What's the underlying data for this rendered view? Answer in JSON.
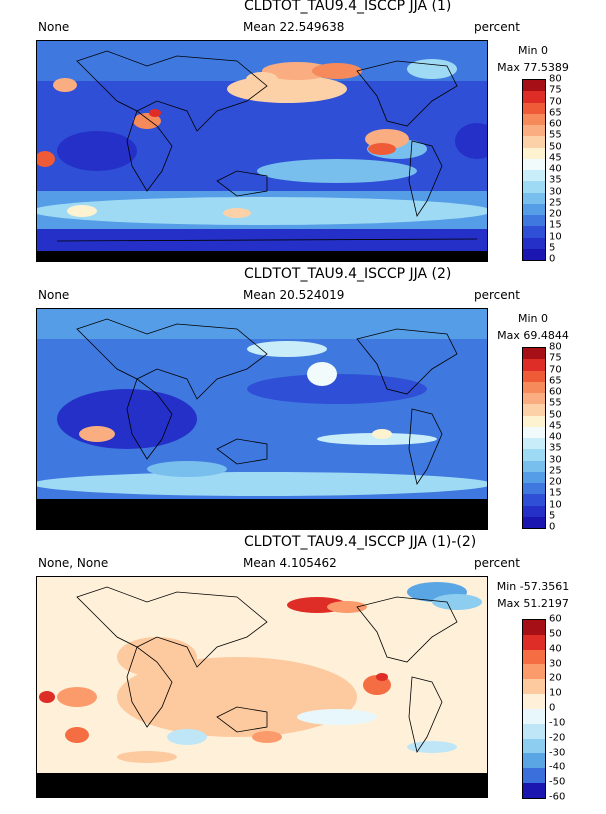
{
  "units": "percent",
  "chart_data": [
    {
      "type": "heatmap",
      "title": "CLDTOT_TAU9.4_ISCCP JJA (1)",
      "left_label": "None",
      "mean_text": "Mean 22.549638",
      "units": "percent",
      "min_text": "Min 0",
      "max_text": "Max 77.5389",
      "colorbar_levels": [
        80,
        75,
        70,
        65,
        60,
        55,
        50,
        45,
        40,
        35,
        30,
        25,
        20,
        15,
        10,
        5,
        0
      ],
      "colorbar_colors": [
        "#a50f15",
        "#de2d26",
        "#ef5a37",
        "#f68a5a",
        "#f9ad80",
        "#fcd1a8",
        "#fef3d0",
        "#f1fbfb",
        "#c9eefa",
        "#9fdaf5",
        "#78bfee",
        "#559de6",
        "#3f79e0",
        "#2f4fd6",
        "#2430c8",
        "#1c16b0"
      ],
      "description_ranges": {
        "min": 0,
        "max": 77.5389
      }
    },
    {
      "type": "heatmap",
      "title": "CLDTOT_TAU9.4_ISCCP JJA (2)",
      "left_label": "None",
      "mean_text": "Mean 20.524019",
      "units": "percent",
      "min_text": "Min 0",
      "max_text": "Max 69.4844",
      "colorbar_levels": [
        80,
        75,
        70,
        65,
        60,
        55,
        50,
        45,
        40,
        35,
        30,
        25,
        20,
        15,
        10,
        5,
        0
      ],
      "colorbar_colors": [
        "#a50f15",
        "#de2d26",
        "#ef5a37",
        "#f68a5a",
        "#f9ad80",
        "#fcd1a8",
        "#fef3d0",
        "#f1fbfb",
        "#c9eefa",
        "#9fdaf5",
        "#78bfee",
        "#559de6",
        "#3f79e0",
        "#2f4fd6",
        "#2430c8",
        "#1c16b0"
      ],
      "description_ranges": {
        "min": 0,
        "max": 69.4844
      }
    },
    {
      "type": "heatmap",
      "title": "CLDTOT_TAU9.4_ISCCP JJA (1)-(2)",
      "left_label": "None, None",
      "mean_text": "Mean 4.105462",
      "units": "percent",
      "min_text": "Min -57.3561",
      "max_text": "Max 51.2197",
      "colorbar_levels": [
        60,
        50,
        40,
        30,
        20,
        10,
        0,
        -10,
        -20,
        -30,
        -40,
        -50,
        -60
      ],
      "colorbar_colors": [
        "#a50f15",
        "#de2d26",
        "#f46d43",
        "#fb9a6a",
        "#fdc99f",
        "#fff1d9",
        "#e8f7fb",
        "#bfe6f7",
        "#8dcdf0",
        "#5aa6e4",
        "#3b6fdc",
        "#1c16b0"
      ],
      "description_ranges": {
        "min": -57.3561,
        "max": 51.2197
      }
    }
  ]
}
